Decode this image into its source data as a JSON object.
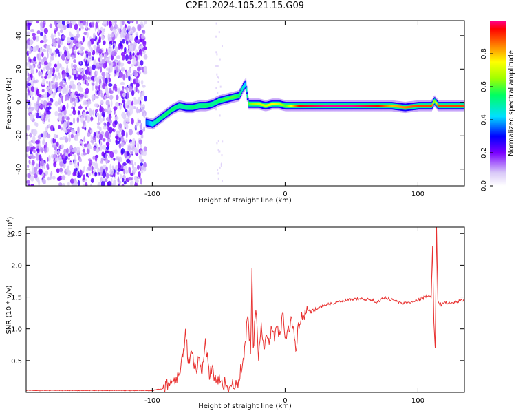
{
  "title": "C2E1.2024.105.21.15.G09",
  "chart_data": [
    {
      "type": "heatmap",
      "xlabel": "Height of straight line (km)",
      "ylabel": "Frequency (Hz)",
      "xlim": [
        -195,
        135
      ],
      "ylim": [
        -50,
        49
      ],
      "x_ticks": [
        -100,
        0,
        100
      ],
      "y_ticks": [
        -40,
        -20,
        0,
        20,
        40
      ],
      "grid": false,
      "colorbar": {
        "label": "Normalized spectral amplitude",
        "range": [
          0,
          1
        ],
        "ticks": [
          0.0,
          0.2,
          0.4,
          0.6,
          0.8
        ]
      },
      "ridge_track": {
        "x": [
          -105,
          -100,
          -95,
          -90,
          -85,
          -80,
          -75,
          -70,
          -65,
          -60,
          -55,
          -50,
          -45,
          -40,
          -35,
          -32,
          -30,
          -28,
          -25,
          -20,
          -15,
          -10,
          -5,
          0,
          10,
          30,
          50,
          70,
          80,
          90,
          100,
          110,
          112,
          115,
          135
        ],
        "freq": [
          -12,
          -13,
          -10,
          -7,
          -4,
          -2,
          -3,
          -3,
          -2,
          -2,
          -1,
          1,
          2,
          3,
          4,
          9,
          11,
          -1,
          -1,
          -1,
          -2,
          -1,
          -1,
          -2,
          -2,
          -2,
          -2,
          -2,
          -2,
          -3,
          -2,
          -2,
          1,
          -2,
          -2
        ],
        "amplitude": [
          0.35,
          0.45,
          0.5,
          0.55,
          0.55,
          0.5,
          0.5,
          0.55,
          0.5,
          0.55,
          0.5,
          0.55,
          0.6,
          0.6,
          0.55,
          0.45,
          0.4,
          0.6,
          0.65,
          0.7,
          0.7,
          0.75,
          0.7,
          0.6,
          0.95,
          1.0,
          1.0,
          0.95,
          0.8,
          0.85,
          0.9,
          0.9,
          0.6,
          0.9,
          0.9
        ]
      },
      "noise_region_x": [
        -195,
        -105
      ]
    },
    {
      "type": "line",
      "xlabel": "Height of straight line (km)",
      "ylabel": "SNR (10 * v/v)",
      "y_multiplier": "(x10^4)",
      "xlim": [
        -195,
        135
      ],
      "ylim": [
        0,
        2.6
      ],
      "x_ticks": [
        -100,
        0,
        100
      ],
      "y_ticks": [
        0.5,
        1.0,
        1.5,
        2.0,
        2.5
      ],
      "color": "#e8302f",
      "series": [
        {
          "x": [
            -195,
            -150,
            -100,
            -92,
            -88,
            -85,
            -80,
            -77,
            -75,
            -73,
            -70,
            -67,
            -65,
            -63,
            -60,
            -57,
            -55,
            -52,
            -50,
            -47,
            -45,
            -42,
            -40,
            -38,
            -35,
            -32,
            -30,
            -28,
            -26,
            -25,
            -24,
            -22,
            -20,
            -18,
            -16,
            -14,
            -12,
            -10,
            -8,
            -6,
            -4,
            -2,
            0,
            2,
            4,
            6,
            8,
            10,
            12,
            14,
            16,
            20,
            25,
            30,
            35,
            40,
            50,
            60,
            65,
            70,
            75,
            80,
            85,
            90,
            95,
            100,
            105,
            108,
            110,
            111,
            112,
            113,
            114,
            115,
            116,
            118,
            120,
            125,
            130,
            135
          ],
          "values": [
            0.03,
            0.03,
            0.03,
            0.06,
            0.15,
            0.18,
            0.3,
            0.55,
            1.0,
            0.45,
            0.6,
            0.35,
            0.55,
            0.3,
            0.85,
            0.2,
            0.4,
            0.15,
            0.25,
            0.1,
            0.15,
            0.08,
            0.12,
            0.05,
            0.2,
            0.45,
            0.8,
            1.2,
            0.6,
            1.95,
            0.7,
            1.3,
            0.5,
            1.1,
            0.7,
            0.9,
            0.75,
            1.0,
            0.8,
            1.05,
            0.9,
            1.25,
            0.85,
            1.0,
            1.1,
            1.05,
            0.65,
            1.1,
            1.15,
            1.2,
            1.25,
            1.28,
            1.33,
            1.38,
            1.4,
            1.42,
            1.46,
            1.47,
            1.45,
            1.42,
            1.5,
            1.46,
            1.42,
            1.4,
            1.43,
            1.45,
            1.5,
            1.52,
            1.48,
            2.3,
            1.1,
            0.7,
            2.6,
            1.45,
            1.4,
            1.38,
            1.42,
            1.4,
            1.43,
            1.45
          ]
        }
      ]
    }
  ]
}
